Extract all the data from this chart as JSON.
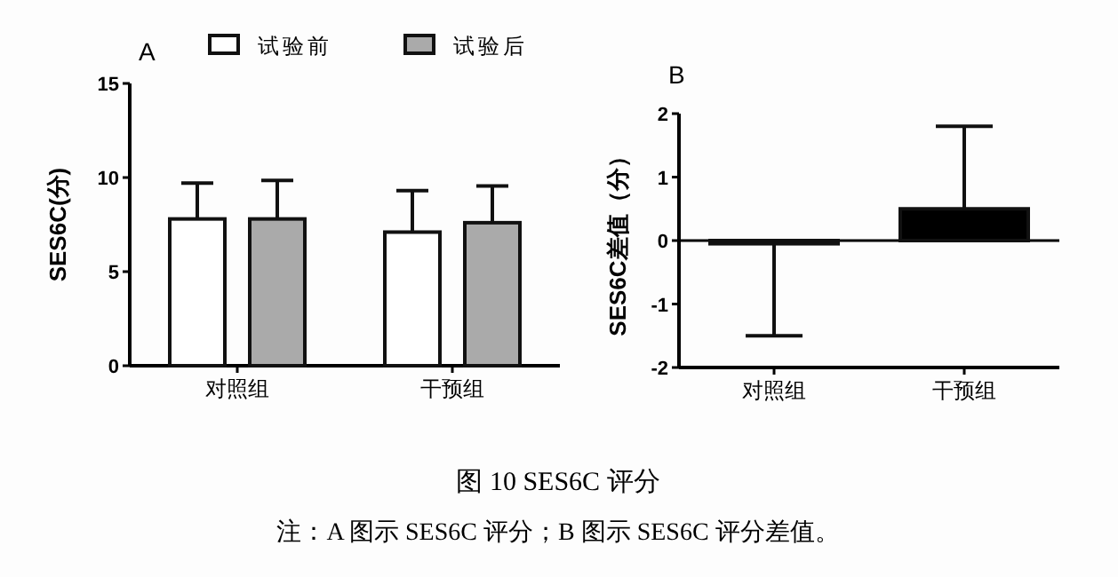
{
  "chart_data": [
    {
      "type": "bar",
      "title": "A",
      "ylabel": "SES6C(分)",
      "categories": [
        "对照组",
        "干预组"
      ],
      "series": [
        {
          "name": "试验前",
          "color": "#ffffff",
          "values": [
            7.8,
            7.1
          ],
          "errors": [
            [
              7.8,
              9.7
            ],
            [
              7.1,
              9.3
            ]
          ]
        },
        {
          "name": "试验后",
          "color": "#aaaaaa",
          "values": [
            7.8,
            7.6
          ],
          "errors": [
            [
              7.8,
              9.85
            ],
            [
              7.6,
              9.55
            ]
          ]
        }
      ],
      "ylim": [
        0,
        15
      ],
      "yticks": [
        0,
        5,
        10,
        15
      ],
      "grid": false,
      "legend": "top",
      "annotations": [
        "图 10 SES6C 评分",
        "注：A 图示 SES6C 评分；B 图示 SES6C 评分差值。"
      ]
    },
    {
      "type": "bar",
      "title": "B",
      "ylabel": "SES6C差值（分）",
      "categories": [
        "对照组",
        "干预组"
      ],
      "series": [
        {
          "color": "#000000",
          "values": [
            -0.05,
            0.5
          ],
          "errors": [
            [
              -1.5,
              -0.05
            ],
            [
              0.5,
              1.8
            ]
          ]
        }
      ],
      "ylim": [
        -2,
        2
      ],
      "yticks": [
        -2,
        -1,
        0,
        1,
        2
      ],
      "grid": false,
      "ref_lines": [
        {
          "axis": "y",
          "value": 0,
          "color": "#000000"
        }
      ]
    }
  ]
}
